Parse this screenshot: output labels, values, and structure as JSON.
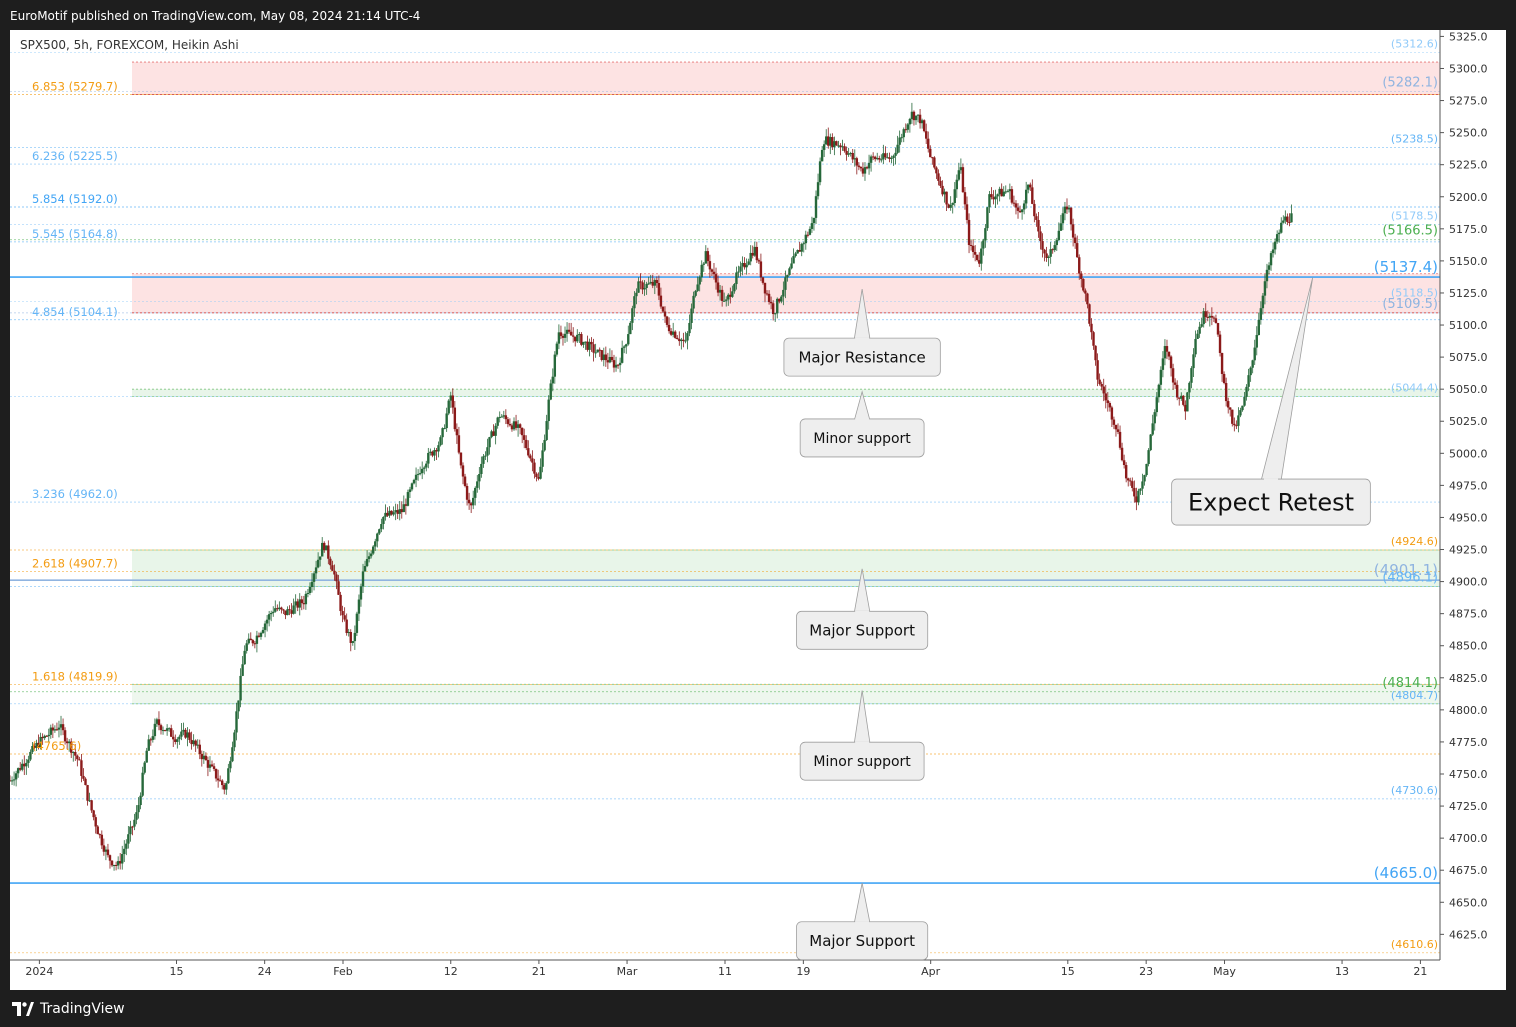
{
  "header": {
    "publisher_text": "EuroMotif published on TradingView.com, May 08, 2024 21:14 UTC-4"
  },
  "footer": {
    "brand": "TradingView"
  },
  "colors": {
    "bull": "#26683a",
    "bear": "#8b1a1a",
    "fib_orange": "#f39c12",
    "fib_blue": "#64b5f6",
    "green": "#4caf50",
    "zone_red": "#fde3e3",
    "zone_green": "#e8f5e9"
  },
  "chart_data": {
    "type": "candlestick",
    "symbol": "SPX500, 5h, FOREXCOM, Heikin Ashi",
    "ylim": [
      4605,
      5330
    ],
    "yticks": [
      4625,
      4650,
      4675,
      4700,
      4725,
      4750,
      4775,
      4800,
      4825,
      4850,
      4875,
      4900,
      4925,
      4950,
      4975,
      5000,
      5025,
      5050,
      5075,
      5100,
      5125,
      5150,
      5175,
      5200,
      5225,
      5250,
      5275,
      5300,
      5325
    ],
    "xlim": [
      "2023-12-29",
      "2024-05-23"
    ],
    "xticks": [
      {
        "date": "2024-01-01",
        "label": "2024"
      },
      {
        "date": "2024-01-15",
        "label": "15"
      },
      {
        "date": "2024-01-24",
        "label": "24"
      },
      {
        "date": "2024-02-01",
        "label": "Feb"
      },
      {
        "date": "2024-02-12",
        "label": "12"
      },
      {
        "date": "2024-02-21",
        "label": "21"
      },
      {
        "date": "2024-03-01",
        "label": "Mar"
      },
      {
        "date": "2024-03-11",
        "label": "11"
      },
      {
        "date": "2024-03-19",
        "label": "19"
      },
      {
        "date": "2024-04-01",
        "label": "Apr"
      },
      {
        "date": "2024-04-15",
        "label": "15"
      },
      {
        "date": "2024-04-23",
        "label": "23"
      },
      {
        "date": "2024-05-01",
        "label": "May"
      },
      {
        "date": "2024-05-13",
        "label": "13"
      },
      {
        "date": "2024-05-21",
        "label": "21"
      }
    ],
    "price_path": [
      [
        "2023-12-29",
        4745
      ],
      [
        "2024-01-01",
        4775
      ],
      [
        "2024-01-03",
        4788
      ],
      [
        "2024-01-05",
        4760
      ],
      [
        "2024-01-06",
        4730
      ],
      [
        "2024-01-07",
        4705
      ],
      [
        "2024-01-08",
        4685
      ],
      [
        "2024-01-09",
        4678
      ],
      [
        "2024-01-11",
        4720
      ],
      [
        "2024-01-12",
        4770
      ],
      [
        "2024-01-13",
        4790
      ],
      [
        "2024-01-15",
        4778
      ],
      [
        "2024-01-16",
        4782
      ],
      [
        "2024-01-18",
        4760
      ],
      [
        "2024-01-20",
        4738
      ],
      [
        "2024-01-21",
        4790
      ],
      [
        "2024-01-22",
        4850
      ],
      [
        "2024-01-23",
        4855
      ],
      [
        "2024-01-25",
        4880
      ],
      [
        "2024-01-26",
        4875
      ],
      [
        "2024-01-28",
        4885
      ],
      [
        "2024-01-30",
        4930
      ],
      [
        "2024-01-31",
        4910
      ],
      [
        "2024-02-01",
        4870
      ],
      [
        "2024-02-02",
        4850
      ],
      [
        "2024-02-03",
        4905
      ],
      [
        "2024-02-05",
        4950
      ],
      [
        "2024-02-07",
        4955
      ],
      [
        "2024-02-09",
        4990
      ],
      [
        "2024-02-11",
        5010
      ],
      [
        "2024-02-12",
        5045
      ],
      [
        "2024-02-13",
        4990
      ],
      [
        "2024-02-14",
        4955
      ],
      [
        "2024-02-15",
        4990
      ],
      [
        "2024-02-17",
        5030
      ],
      [
        "2024-02-19",
        5018
      ],
      [
        "2024-02-20",
        5000
      ],
      [
        "2024-02-21",
        4978
      ],
      [
        "2024-02-22",
        5040
      ],
      [
        "2024-02-23",
        5095
      ],
      [
        "2024-02-25",
        5090
      ],
      [
        "2024-02-27",
        5078
      ],
      [
        "2024-02-29",
        5068
      ],
      [
        "2024-03-01",
        5090
      ],
      [
        "2024-03-02",
        5130
      ],
      [
        "2024-03-04",
        5132
      ],
      [
        "2024-03-05",
        5100
      ],
      [
        "2024-03-07",
        5085
      ],
      [
        "2024-03-08",
        5130
      ],
      [
        "2024-03-09",
        5155
      ],
      [
        "2024-03-11",
        5115
      ],
      [
        "2024-03-12",
        5135
      ],
      [
        "2024-03-14",
        5160
      ],
      [
        "2024-03-15",
        5130
      ],
      [
        "2024-03-16",
        5110
      ],
      [
        "2024-03-18",
        5150
      ],
      [
        "2024-03-19",
        5165
      ],
      [
        "2024-03-20",
        5180
      ],
      [
        "2024-03-21",
        5245
      ],
      [
        "2024-03-23",
        5240
      ],
      [
        "2024-03-25",
        5220
      ],
      [
        "2024-03-26",
        5230
      ],
      [
        "2024-03-28",
        5230
      ],
      [
        "2024-03-30",
        5265
      ],
      [
        "2024-03-31",
        5260
      ],
      [
        "2024-04-01",
        5230
      ],
      [
        "2024-04-02",
        5210
      ],
      [
        "2024-04-03",
        5190
      ],
      [
        "2024-04-04",
        5225
      ],
      [
        "2024-04-05",
        5160
      ],
      [
        "2024-04-06",
        5150
      ],
      [
        "2024-04-07",
        5200
      ],
      [
        "2024-04-09",
        5205
      ],
      [
        "2024-04-10",
        5185
      ],
      [
        "2024-04-11",
        5210
      ],
      [
        "2024-04-12",
        5170
      ],
      [
        "2024-04-13",
        5150
      ],
      [
        "2024-04-15",
        5195
      ],
      [
        "2024-04-16",
        5150
      ],
      [
        "2024-04-17",
        5115
      ],
      [
        "2024-04-18",
        5060
      ],
      [
        "2024-04-19",
        5040
      ],
      [
        "2024-04-20",
        5020
      ],
      [
        "2024-04-21",
        4980
      ],
      [
        "2024-04-22",
        4965
      ],
      [
        "2024-04-23",
        4990
      ],
      [
        "2024-04-24",
        5040
      ],
      [
        "2024-04-25",
        5085
      ],
      [
        "2024-04-26",
        5050
      ],
      [
        "2024-04-27",
        5035
      ],
      [
        "2024-04-28",
        5090
      ],
      [
        "2024-04-29",
        5110
      ],
      [
        "2024-04-30",
        5108
      ],
      [
        "2024-05-01",
        5050
      ],
      [
        "2024-05-02",
        5018
      ],
      [
        "2024-05-03",
        5040
      ],
      [
        "2024-05-04",
        5080
      ],
      [
        "2024-05-05",
        5130
      ],
      [
        "2024-05-06",
        5160
      ],
      [
        "2024-05-07",
        5182
      ],
      [
        "2024-05-08",
        5185
      ]
    ],
    "fib_levels": [
      {
        "label": "6.853 (5279.7)",
        "price": 5279.7,
        "color": "#f39c12"
      },
      {
        "label": "6.236 (5225.5)",
        "price": 5225.5,
        "color": "#64b5f6"
      },
      {
        "label": "5.854 (5192.0)",
        "price": 5192.0,
        "color": "#42a5f5"
      },
      {
        "label": "5.545 (5164.8)",
        "price": 5164.8,
        "color": "#64b5f6"
      },
      {
        "label": "4.854 (5104.1)",
        "price": 5104.1,
        "color": "#64b5f6"
      },
      {
        "label": "3.236 (4962.0)",
        "price": 4962.0,
        "color": "#64b5f6"
      },
      {
        "label": "2.618 (4907.7)",
        "price": 4907.7,
        "color": "#f39c12"
      },
      {
        "label": "1.618 (4819.9)",
        "price": 4819.9,
        "color": "#f39c12"
      },
      {
        "label": "(4765.6)",
        "price": 4765.6,
        "color": "#f39c12"
      }
    ],
    "right_levels": [
      {
        "label": "(5312.6)",
        "price": 5312.6,
        "color": "#90caf9",
        "size": 11
      },
      {
        "label": "(5282.1)",
        "price": 5282.1,
        "color": "#90b4e0",
        "size": 13
      },
      {
        "label": "(5238.5)",
        "price": 5238.5,
        "color": "#64b5f6",
        "size": 11
      },
      {
        "label": "(5178.5)",
        "price": 5178.5,
        "color": "#90caf9",
        "size": 11
      },
      {
        "label": "(5166.5)",
        "price": 5166.5,
        "color": "#4caf50",
        "size": 13
      },
      {
        "label": "(5137.4)",
        "price": 5137.4,
        "color": "#42a5f5",
        "size": 15
      },
      {
        "label": "(5118.5)",
        "price": 5118.5,
        "color": "#90caf9",
        "size": 11
      },
      {
        "label": "(5109.5)",
        "price": 5109.5,
        "color": "#90b4e0",
        "size": 13
      },
      {
        "label": "(5044.4)",
        "price": 5044.4,
        "color": "#90caf9",
        "size": 11
      },
      {
        "label": "(4924.6)",
        "price": 4924.6,
        "color": "#f39c12",
        "size": 11
      },
      {
        "label": "(4901.1)",
        "price": 4901.1,
        "color": "#90b4e0",
        "size": 15
      },
      {
        "label": "(4896.1)",
        "price": 4896.1,
        "color": "#64b5f6",
        "size": 13
      },
      {
        "label": "(4814.1)",
        "price": 4814.1,
        "color": "#4caf50",
        "size": 13
      },
      {
        "label": "(4804.7)",
        "price": 4804.7,
        "color": "#64b5f6",
        "size": 11
      },
      {
        "label": "(4730.6)",
        "price": 4730.6,
        "color": "#64b5f6",
        "size": 11
      },
      {
        "label": "(4665.0)",
        "price": 4665.0,
        "color": "#42a5f5",
        "size": 15
      },
      {
        "label": "(4610.6)",
        "price": 4610.6,
        "color": "#f39c12",
        "size": 11
      }
    ],
    "zones": [
      {
        "type": "resistance",
        "from": 5279.7,
        "to": 5305,
        "color": "#fde3e3"
      },
      {
        "type": "resistance",
        "from": 5109.5,
        "to": 5140,
        "color": "#fde3e3"
      },
      {
        "type": "support",
        "from": 5044.4,
        "to": 5050,
        "color": "#e8f5e9"
      },
      {
        "type": "support",
        "from": 4896.1,
        "to": 4924.6,
        "color": "#e8f5e9"
      },
      {
        "type": "support",
        "from": 4804.7,
        "to": 4819.9,
        "color": "#eef7ee"
      }
    ],
    "annotations": [
      {
        "text": "Major Resistance",
        "anchor_date": "2024-03-25",
        "anchor_price": 5128,
        "box_price": 5075,
        "size": 15
      },
      {
        "text": "Minor support",
        "anchor_date": "2024-03-25",
        "anchor_price": 5048,
        "box_price": 5012,
        "size": 14
      },
      {
        "text": "Major Support",
        "anchor_date": "2024-03-25",
        "anchor_price": 4910,
        "box_price": 4862,
        "size": 15
      },
      {
        "text": "Minor support",
        "anchor_date": "2024-03-25",
        "anchor_price": 4815,
        "box_price": 4760,
        "size": 14
      },
      {
        "text": "Expect Retest",
        "anchor_date": "2024-05-10",
        "anchor_price": 5137,
        "box_price": 4962,
        "size": 24
      },
      {
        "text": "Major Support",
        "anchor_date": "2024-03-25",
        "anchor_price": 4665,
        "box_price": 4620,
        "size": 15
      }
    ]
  }
}
